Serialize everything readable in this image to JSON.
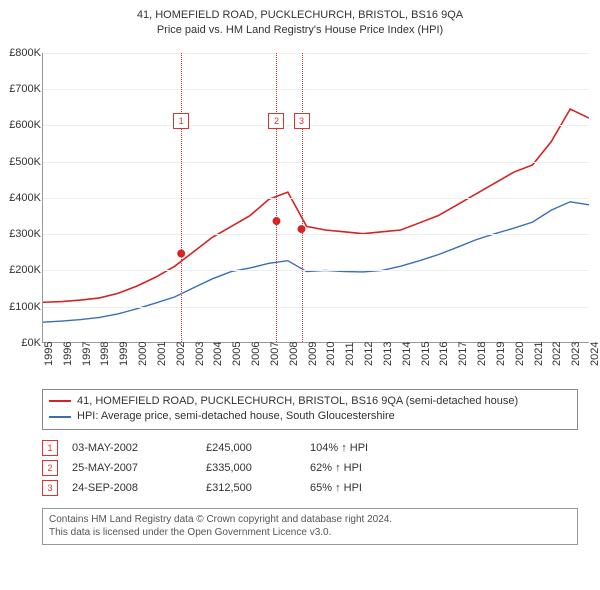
{
  "title1": "41, HOMEFIELD ROAD, PUCKLECHURCH, BRISTOL, BS16 9QA",
  "title2": "Price paid vs. HM Land Registry's House Price Index (HPI)",
  "chart": {
    "type": "line",
    "background": "#ffffff",
    "grid_color": "#eeeeee",
    "axis_color": "#999999",
    "y_min": 0,
    "y_max": 800,
    "y_step": 100,
    "y_prefix": "£",
    "y_suffix": "K",
    "x_years": [
      1995,
      1996,
      1997,
      1998,
      1999,
      2000,
      2001,
      2002,
      2003,
      2004,
      2005,
      2006,
      2007,
      2008,
      2009,
      2010,
      2011,
      2012,
      2013,
      2014,
      2015,
      2016,
      2017,
      2018,
      2019,
      2020,
      2021,
      2022,
      2023,
      2024
    ],
    "series": [
      {
        "name": "41, HOMEFIELD ROAD, PUCKLECHURCH, BRISTOL, BS16 9QA (semi-detached house)",
        "color": "#d32424",
        "width": 1.6,
        "y": [
          110,
          112,
          116,
          122,
          135,
          155,
          180,
          210,
          250,
          290,
          320,
          350,
          395,
          415,
          320,
          310,
          305,
          300,
          305,
          310,
          330,
          350,
          380,
          410,
          440,
          470,
          490,
          555,
          645,
          620
        ]
      },
      {
        "name": "HPI: Average price, semi-detached house, South Gloucestershire",
        "color": "#3a6fb7",
        "width": 1.4,
        "y": [
          55,
          58,
          62,
          68,
          78,
          92,
          108,
          125,
          150,
          175,
          195,
          205,
          218,
          225,
          195,
          198,
          195,
          194,
          198,
          210,
          225,
          242,
          262,
          283,
          300,
          315,
          332,
          365,
          388,
          380
        ]
      }
    ],
    "sale_markers": [
      {
        "n": "1",
        "year": 2002.34,
        "price_k": 245,
        "box_top": 60
      },
      {
        "n": "2",
        "year": 2007.4,
        "price_k": 335,
        "box_top": 60
      },
      {
        "n": "3",
        "year": 2008.73,
        "price_k": 312.5,
        "box_top": 60
      }
    ],
    "label_fontsize": 11
  },
  "legend": {
    "items": [
      {
        "color": "#d32424",
        "text": "41, HOMEFIELD ROAD, PUCKLECHURCH, BRISTOL, BS16 9QA (semi-detached house)"
      },
      {
        "color": "#3a6fb7",
        "text": "HPI: Average price, semi-detached house, South Gloucestershire"
      }
    ]
  },
  "transactions": [
    {
      "n": "1",
      "date": "03-MAY-2002",
      "price": "£245,000",
      "pct": "104% ↑ HPI"
    },
    {
      "n": "2",
      "date": "25-MAY-2007",
      "price": "£335,000",
      "pct": "62% ↑ HPI"
    },
    {
      "n": "3",
      "date": "24-SEP-2008",
      "price": "£312,500",
      "pct": "65% ↑ HPI"
    }
  ],
  "footer": {
    "line1": "Contains HM Land Registry data © Crown copyright and database right 2024.",
    "line2": "This data is licensed under the Open Government Licence v3.0."
  }
}
